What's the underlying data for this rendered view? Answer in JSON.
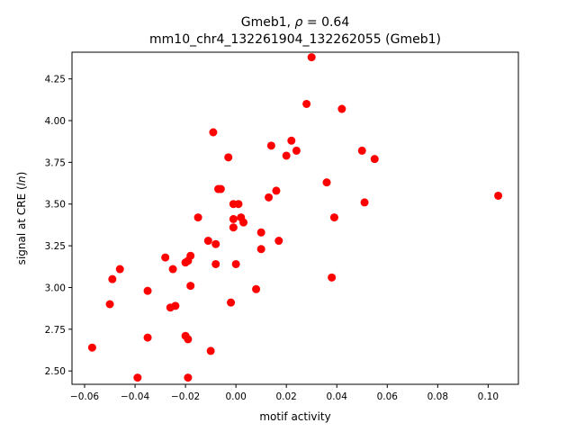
{
  "chart_data": {
    "type": "scatter",
    "title": "Gmeb1, ρ = 0.64",
    "subtitle": "mm10_chr4_132261904_132262055 (Gmeb1)",
    "xlabel": "motif activity",
    "ylabel": "signal at CRE (ln)",
    "xlim": [
      -0.065,
      0.112
    ],
    "ylim": [
      2.42,
      4.41
    ],
    "xticks": [
      -0.06,
      -0.04,
      -0.02,
      0.0,
      0.02,
      0.04,
      0.06,
      0.08,
      0.1
    ],
    "xtick_labels": [
      "−0.06",
      "−0.04",
      "−0.02",
      "0.00",
      "0.02",
      "0.04",
      "0.06",
      "0.08",
      "0.10"
    ],
    "yticks": [
      2.5,
      2.75,
      3.0,
      3.25,
      3.5,
      3.75,
      4.0,
      4.25
    ],
    "ytick_labels": [
      "2.50",
      "2.75",
      "3.00",
      "3.25",
      "3.50",
      "3.75",
      "4.00",
      "4.25"
    ],
    "grid": false,
    "marker_color": "#ff0000",
    "points": [
      {
        "x": 0.03,
        "y": 4.38
      },
      {
        "x": 0.028,
        "y": 4.1
      },
      {
        "x": 0.042,
        "y": 4.07
      },
      {
        "x": -0.009,
        "y": 3.93
      },
      {
        "x": 0.022,
        "y": 3.88
      },
      {
        "x": 0.014,
        "y": 3.85
      },
      {
        "x": 0.024,
        "y": 3.82
      },
      {
        "x": 0.05,
        "y": 3.82
      },
      {
        "x": 0.02,
        "y": 3.79
      },
      {
        "x": -0.003,
        "y": 3.78
      },
      {
        "x": 0.055,
        "y": 3.77
      },
      {
        "x": 0.036,
        "y": 3.63
      },
      {
        "x": -0.007,
        "y": 3.59
      },
      {
        "x": -0.006,
        "y": 3.59
      },
      {
        "x": 0.016,
        "y": 3.58
      },
      {
        "x": 0.104,
        "y": 3.55
      },
      {
        "x": 0.013,
        "y": 3.54
      },
      {
        "x": -0.001,
        "y": 3.5
      },
      {
        "x": 0.001,
        "y": 3.5
      },
      {
        "x": 0.051,
        "y": 3.51
      },
      {
        "x": -0.015,
        "y": 3.42
      },
      {
        "x": -0.001,
        "y": 3.41
      },
      {
        "x": 0.002,
        "y": 3.42
      },
      {
        "x": 0.003,
        "y": 3.39
      },
      {
        "x": 0.039,
        "y": 3.42
      },
      {
        "x": -0.001,
        "y": 3.36
      },
      {
        "x": 0.01,
        "y": 3.33
      },
      {
        "x": -0.011,
        "y": 3.28
      },
      {
        "x": 0.017,
        "y": 3.28
      },
      {
        "x": -0.008,
        "y": 3.26
      },
      {
        "x": 0.01,
        "y": 3.23
      },
      {
        "x": -0.018,
        "y": 3.19
      },
      {
        "x": -0.028,
        "y": 3.18
      },
      {
        "x": -0.019,
        "y": 3.16
      },
      {
        "x": -0.02,
        "y": 3.15
      },
      {
        "x": 0.0,
        "y": 3.14
      },
      {
        "x": -0.008,
        "y": 3.14
      },
      {
        "x": -0.046,
        "y": 3.11
      },
      {
        "x": -0.025,
        "y": 3.11
      },
      {
        "x": -0.049,
        "y": 3.05
      },
      {
        "x": 0.038,
        "y": 3.06
      },
      {
        "x": -0.018,
        "y": 3.01
      },
      {
        "x": 0.008,
        "y": 2.99
      },
      {
        "x": -0.035,
        "y": 2.98
      },
      {
        "x": -0.002,
        "y": 2.91
      },
      {
        "x": -0.05,
        "y": 2.9
      },
      {
        "x": -0.026,
        "y": 2.88
      },
      {
        "x": -0.024,
        "y": 2.89
      },
      {
        "x": -0.02,
        "y": 2.71
      },
      {
        "x": -0.035,
        "y": 2.7
      },
      {
        "x": -0.019,
        "y": 2.69
      },
      {
        "x": -0.057,
        "y": 2.64
      },
      {
        "x": -0.01,
        "y": 2.62
      },
      {
        "x": -0.039,
        "y": 2.46
      },
      {
        "x": -0.019,
        "y": 2.46
      }
    ]
  }
}
